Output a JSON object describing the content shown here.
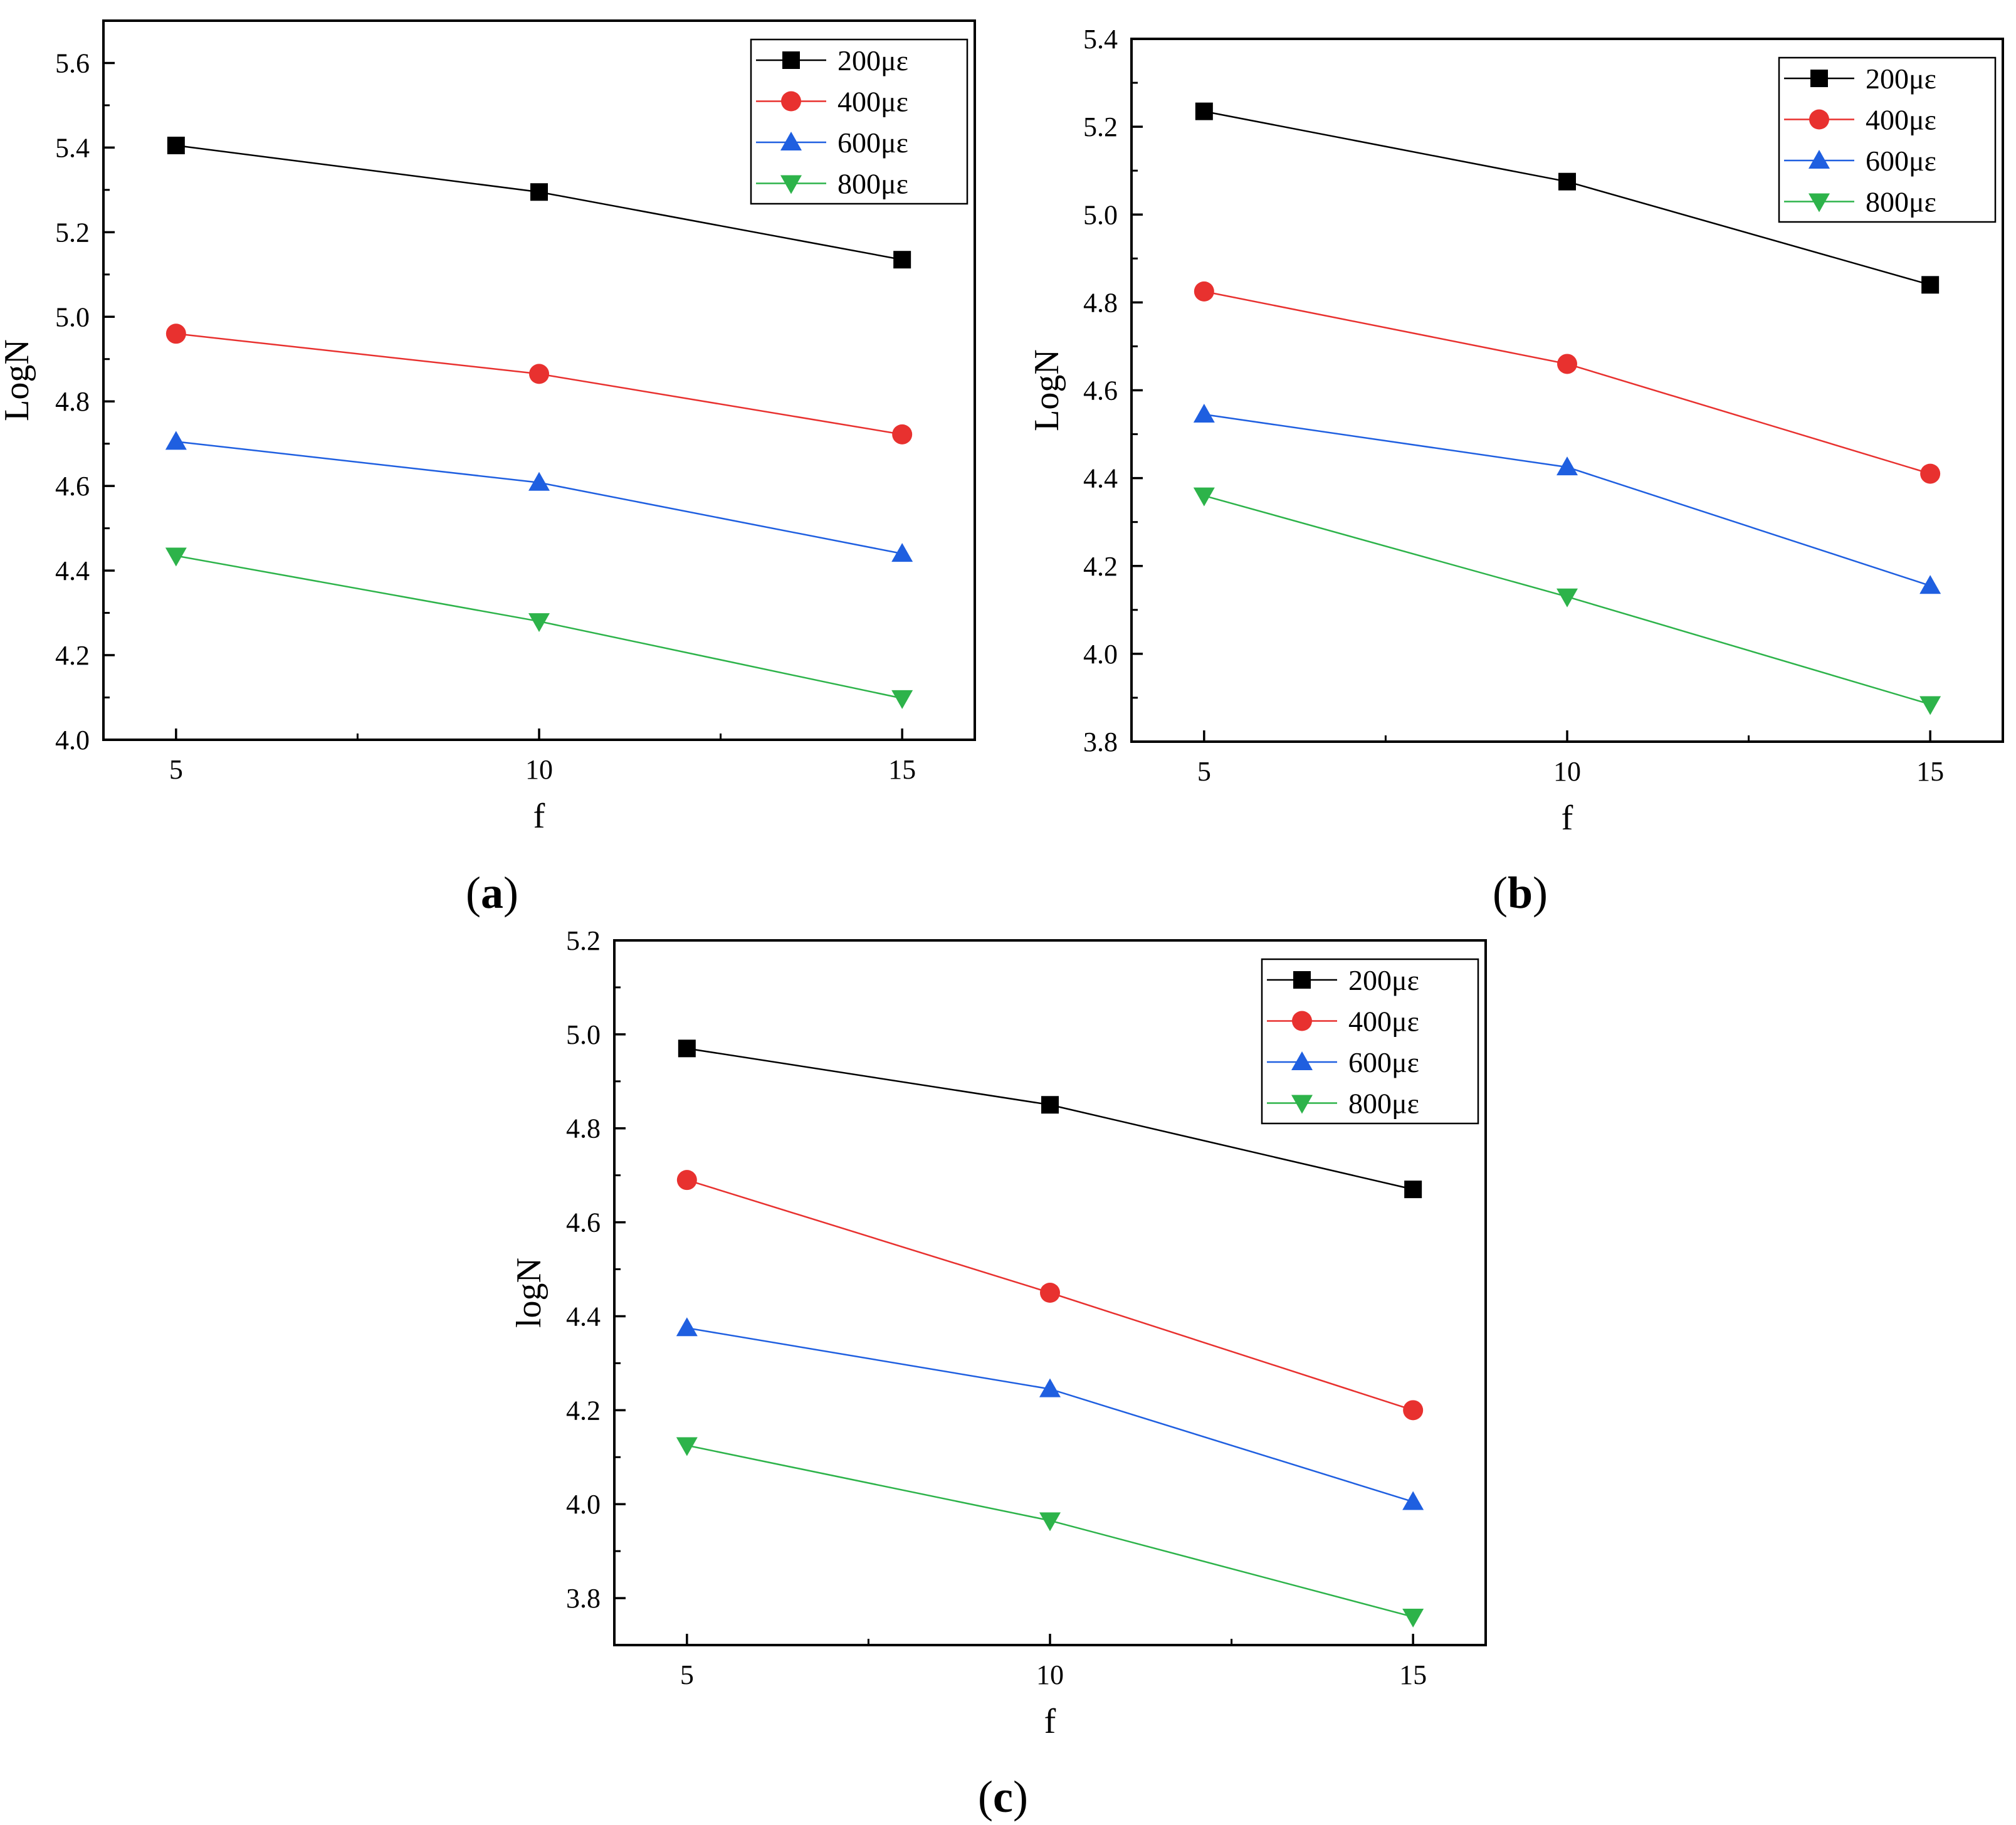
{
  "figure": {
    "series_colors": [
      "#000000",
      "#e8312f",
      "#1f5fe0",
      "#2db34a"
    ],
    "legend_labels": [
      "200με",
      "400με",
      "600με",
      "800με"
    ],
    "marker_names": [
      "square",
      "circle",
      "triangle-up",
      "triangle-down"
    ]
  },
  "chart_data": [
    {
      "id": "a",
      "panel_label": "(a)",
      "type": "line",
      "xlabel": "f",
      "ylabel": "LogN",
      "x": [
        5,
        10,
        15
      ],
      "xlim": [
        4,
        16
      ],
      "ylim": [
        4.0,
        5.7
      ],
      "x_ticks": [
        5,
        10,
        15
      ],
      "x_tick_labels": [
        "5",
        "10",
        "15"
      ],
      "y_ticks": [
        4.0,
        4.2,
        4.4,
        4.6,
        4.8,
        5.0,
        5.2,
        5.4,
        5.6
      ],
      "y_tick_labels": [
        "4.0",
        "4.2",
        "4.4",
        "4.6",
        "4.8",
        "5.0",
        "5.2",
        "5.4",
        "5.6"
      ],
      "legend_position": "top-right",
      "series": [
        {
          "name": "200με",
          "values": [
            5.405,
            5.295,
            5.135
          ]
        },
        {
          "name": "400με",
          "values": [
            4.96,
            4.865,
            4.722
          ]
        },
        {
          "name": "600με",
          "values": [
            4.705,
            4.608,
            4.44
          ]
        },
        {
          "name": "800με",
          "values": [
            4.435,
            4.28,
            4.098
          ]
        }
      ]
    },
    {
      "id": "b",
      "panel_label": "(b)",
      "type": "line",
      "xlabel": "f",
      "ylabel": "LogN",
      "x": [
        5,
        10,
        15
      ],
      "xlim": [
        4,
        16
      ],
      "ylim": [
        3.8,
        5.4
      ],
      "x_ticks": [
        5,
        10,
        15
      ],
      "x_tick_labels": [
        "5",
        "10",
        "15"
      ],
      "y_ticks": [
        3.8,
        4.0,
        4.2,
        4.4,
        4.6,
        4.8,
        5.0,
        5.2,
        5.4
      ],
      "y_tick_labels": [
        "3.8",
        "4.0",
        "4.2",
        "4.4",
        "4.6",
        "4.8",
        "5.0",
        "5.2",
        "5.4"
      ],
      "legend_position": "top-right",
      "series": [
        {
          "name": "200με",
          "values": [
            5.235,
            5.075,
            4.84
          ]
        },
        {
          "name": "400με",
          "values": [
            4.825,
            4.66,
            4.41
          ]
        },
        {
          "name": "600με",
          "values": [
            4.545,
            4.425,
            4.155
          ]
        },
        {
          "name": "800με",
          "values": [
            4.36,
            4.13,
            3.885
          ]
        }
      ]
    },
    {
      "id": "c",
      "panel_label": "(c)",
      "type": "line",
      "xlabel": "f",
      "ylabel": "logN",
      "x": [
        5,
        10,
        15
      ],
      "xlim": [
        4,
        16
      ],
      "ylim": [
        3.7,
        5.2
      ],
      "x_ticks": [
        5,
        10,
        15
      ],
      "x_tick_labels": [
        "5",
        "10",
        "15"
      ],
      "y_ticks": [
        3.8,
        4.0,
        4.2,
        4.4,
        4.6,
        4.8,
        5.0,
        5.2
      ],
      "y_tick_labels": [
        "3.8",
        "4.0",
        "4.2",
        "4.4",
        "4.6",
        "4.8",
        "5.0",
        "5.2"
      ],
      "legend_position": "top-right",
      "series": [
        {
          "name": "200με",
          "values": [
            4.97,
            4.85,
            4.67
          ]
        },
        {
          "name": "400με",
          "values": [
            4.69,
            4.45,
            4.2
          ]
        },
        {
          "name": "600με",
          "values": [
            4.375,
            4.245,
            4.005
          ]
        },
        {
          "name": "800με",
          "values": [
            4.125,
            3.965,
            3.76
          ]
        }
      ]
    }
  ]
}
